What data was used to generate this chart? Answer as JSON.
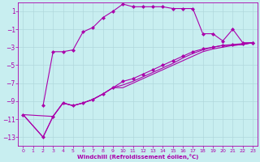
{
  "bg_color": "#c8eef0",
  "grid_color": "#b0d8dc",
  "line_color": "#aa00aa",
  "xlabel": "Windchill (Refroidissement éolien,°C)",
  "xlabel_color": "#aa00aa",
  "xlim": [
    -0.5,
    23.5
  ],
  "ylim": [
    -14,
    2
  ],
  "yticks": [
    1,
    -1,
    -3,
    -5,
    -7,
    -9,
    -11,
    -13
  ],
  "xticks": [
    0,
    1,
    2,
    3,
    4,
    5,
    6,
    7,
    8,
    9,
    10,
    11,
    12,
    13,
    14,
    15,
    16,
    17,
    18,
    19,
    20,
    21,
    22,
    23
  ],
  "curve1_x": [
    2,
    3,
    4,
    5,
    6,
    7,
    8,
    9,
    10,
    11,
    12,
    13,
    14,
    15,
    16,
    17,
    18,
    19,
    20,
    21,
    22,
    23
  ],
  "curve1_y": [
    -9.5,
    -3.5,
    -3.5,
    -3.3,
    -1.3,
    -0.8,
    0.3,
    1.0,
    1.8,
    1.5,
    1.5,
    1.5,
    1.5,
    1.3,
    1.3,
    1.3,
    -1.5,
    -1.5,
    -2.3,
    -1.0,
    -2.5,
    -2.5
  ],
  "line1_x": [
    0,
    2,
    3,
    4,
    5,
    6,
    7,
    8,
    9,
    10,
    11,
    12,
    13,
    14,
    15,
    16,
    17,
    18,
    19,
    20,
    21,
    22,
    23
  ],
  "line1_y": [
    -10.5,
    -13.0,
    -10.7,
    -9.2,
    -9.5,
    -9.2,
    -8.8,
    -8.2,
    -7.5,
    -6.8,
    -6.5,
    -6.0,
    -5.5,
    -5.0,
    -4.5,
    -4.0,
    -3.5,
    -3.2,
    -3.0,
    -2.8,
    -2.7,
    -2.6,
    -2.5
  ],
  "line2_x": [
    0,
    2,
    3,
    4,
    5,
    6,
    7,
    8,
    9,
    10,
    11,
    12,
    13,
    14,
    15,
    16,
    17,
    18,
    19,
    20,
    21,
    22,
    23
  ],
  "line2_y": [
    -10.5,
    -13.0,
    -10.7,
    -9.2,
    -9.5,
    -9.2,
    -8.8,
    -8.2,
    -7.5,
    -7.2,
    -6.8,
    -6.3,
    -5.8,
    -5.3,
    -4.8,
    -4.2,
    -3.7,
    -3.3,
    -3.0,
    -2.8,
    -2.8,
    -2.7,
    -2.5
  ],
  "line3_x": [
    0,
    3,
    4,
    5,
    6,
    7,
    8,
    9,
    10,
    11,
    12,
    13,
    14,
    15,
    16,
    17,
    18,
    19,
    20,
    21,
    22,
    23
  ],
  "line3_y": [
    -10.5,
    -10.7,
    -9.2,
    -9.5,
    -9.2,
    -8.8,
    -8.2,
    -7.5,
    -7.5,
    -7.0,
    -6.5,
    -6.0,
    -5.5,
    -5.0,
    -4.5,
    -4.0,
    -3.5,
    -3.2,
    -3.0,
    -2.8,
    -2.7,
    -2.5
  ]
}
